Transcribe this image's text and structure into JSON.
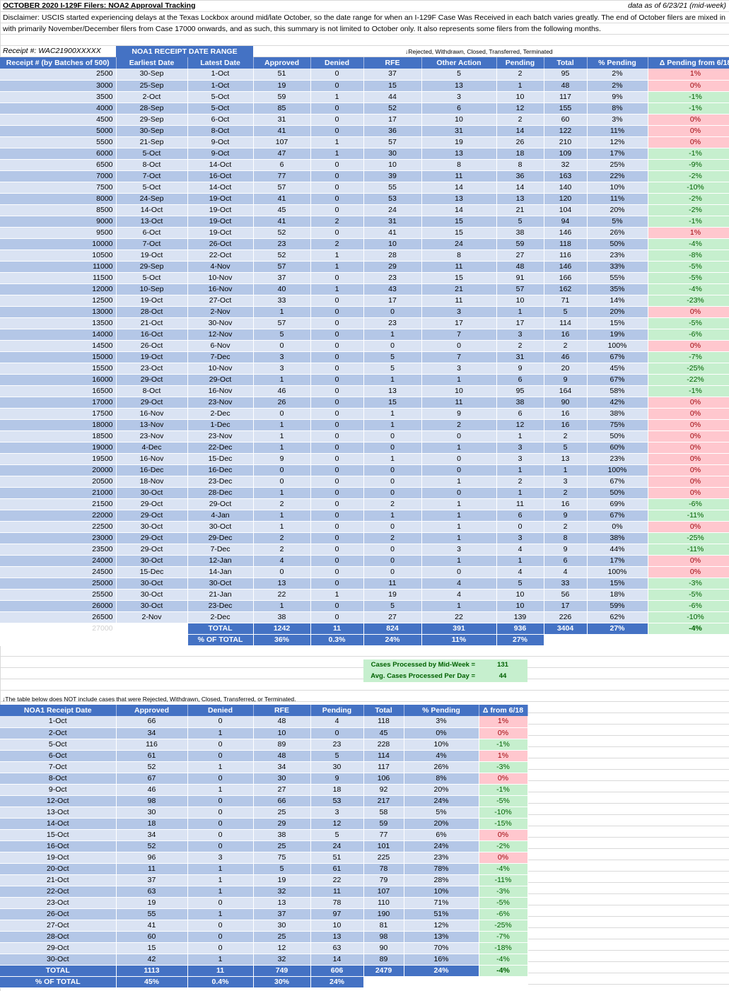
{
  "header": {
    "title": "OCTOBER 2020 I-129F Filers: NOA2 Approval Tracking",
    "as_of": "data as of 6/23/21 (mid-week)",
    "disclaimer": "Disclaimer: USCIS started experiencing delays at the Texas Lockbox around mid/late October, so the date range for when an I-129F Case Was Received in each batch varies greatly. The end of October filers are mixed in with primarily November/December filers from Case 17000 onwards, and as such, this summary is not limited to October only. It also represents some filers from the following months."
  },
  "batch_table": {
    "receipt_prefix": "Receipt #: WAC21900XXXXX",
    "range_group_label": "NOA1 RECEIPT DATE RANGE",
    "other_action_note": "↓Rejected, Withdrawn, Closed, Transferred, Terminated",
    "headers": [
      "Receipt # (by Batches of 500)",
      "Earliest Date",
      "Latest Date",
      "Approved",
      "Denied",
      "RFE",
      "Other Action",
      "Pending",
      "Total",
      "% Pending",
      "Δ Pending from 6/18"
    ],
    "rows": [
      [
        "2500",
        "30-Sep",
        "1-Oct",
        "51",
        "0",
        "37",
        "5",
        "2",
        "95",
        "2%",
        "1%"
      ],
      [
        "3000",
        "25-Sep",
        "1-Oct",
        "19",
        "0",
        "15",
        "13",
        "1",
        "48",
        "2%",
        "0%"
      ],
      [
        "3500",
        "2-Oct",
        "5-Oct",
        "59",
        "1",
        "44",
        "3",
        "10",
        "117",
        "9%",
        "-1%"
      ],
      [
        "4000",
        "28-Sep",
        "5-Oct",
        "85",
        "0",
        "52",
        "6",
        "12",
        "155",
        "8%",
        "-1%"
      ],
      [
        "4500",
        "29-Sep",
        "6-Oct",
        "31",
        "0",
        "17",
        "10",
        "2",
        "60",
        "3%",
        "0%"
      ],
      [
        "5000",
        "30-Sep",
        "8-Oct",
        "41",
        "0",
        "36",
        "31",
        "14",
        "122",
        "11%",
        "0%"
      ],
      [
        "5500",
        "21-Sep",
        "9-Oct",
        "107",
        "1",
        "57",
        "19",
        "26",
        "210",
        "12%",
        "0%"
      ],
      [
        "6000",
        "5-Oct",
        "9-Oct",
        "47",
        "1",
        "30",
        "13",
        "18",
        "109",
        "17%",
        "-1%"
      ],
      [
        "6500",
        "8-Oct",
        "14-Oct",
        "6",
        "0",
        "10",
        "8",
        "8",
        "32",
        "25%",
        "-9%"
      ],
      [
        "7000",
        "7-Oct",
        "16-Oct",
        "77",
        "0",
        "39",
        "11",
        "36",
        "163",
        "22%",
        "-2%"
      ],
      [
        "7500",
        "5-Oct",
        "14-Oct",
        "57",
        "0",
        "55",
        "14",
        "14",
        "140",
        "10%",
        "-10%"
      ],
      [
        "8000",
        "24-Sep",
        "19-Oct",
        "41",
        "0",
        "53",
        "13",
        "13",
        "120",
        "11%",
        "-2%"
      ],
      [
        "8500",
        "14-Oct",
        "19-Oct",
        "45",
        "0",
        "24",
        "14",
        "21",
        "104",
        "20%",
        "-2%"
      ],
      [
        "9000",
        "13-Oct",
        "19-Oct",
        "41",
        "2",
        "31",
        "15",
        "5",
        "94",
        "5%",
        "-1%"
      ],
      [
        "9500",
        "6-Oct",
        "19-Oct",
        "52",
        "0",
        "41",
        "15",
        "38",
        "146",
        "26%",
        "1%"
      ],
      [
        "10000",
        "7-Oct",
        "26-Oct",
        "23",
        "2",
        "10",
        "24",
        "59",
        "118",
        "50%",
        "-4%"
      ],
      [
        "10500",
        "19-Oct",
        "22-Oct",
        "52",
        "1",
        "28",
        "8",
        "27",
        "116",
        "23%",
        "-8%"
      ],
      [
        "11000",
        "29-Sep",
        "4-Nov",
        "57",
        "1",
        "29",
        "11",
        "48",
        "146",
        "33%",
        "-5%"
      ],
      [
        "11500",
        "5-Oct",
        "10-Nov",
        "37",
        "0",
        "23",
        "15",
        "91",
        "166",
        "55%",
        "-5%"
      ],
      [
        "12000",
        "10-Sep",
        "16-Nov",
        "40",
        "1",
        "43",
        "21",
        "57",
        "162",
        "35%",
        "-4%"
      ],
      [
        "12500",
        "19-Oct",
        "27-Oct",
        "33",
        "0",
        "17",
        "11",
        "10",
        "71",
        "14%",
        "-23%"
      ],
      [
        "13000",
        "28-Oct",
        "2-Nov",
        "1",
        "0",
        "0",
        "3",
        "1",
        "5",
        "20%",
        "0%"
      ],
      [
        "13500",
        "21-Oct",
        "30-Nov",
        "57",
        "0",
        "23",
        "17",
        "17",
        "114",
        "15%",
        "-5%"
      ],
      [
        "14000",
        "16-Oct",
        "12-Nov",
        "5",
        "0",
        "1",
        "7",
        "3",
        "16",
        "19%",
        "-6%"
      ],
      [
        "14500",
        "26-Oct",
        "6-Nov",
        "0",
        "0",
        "0",
        "0",
        "2",
        "2",
        "100%",
        "0%"
      ],
      [
        "15000",
        "19-Oct",
        "7-Dec",
        "3",
        "0",
        "5",
        "7",
        "31",
        "46",
        "67%",
        "-7%"
      ],
      [
        "15500",
        "23-Oct",
        "10-Nov",
        "3",
        "0",
        "5",
        "3",
        "9",
        "20",
        "45%",
        "-25%"
      ],
      [
        "16000",
        "29-Oct",
        "29-Oct",
        "1",
        "0",
        "1",
        "1",
        "6",
        "9",
        "67%",
        "-22%"
      ],
      [
        "16500",
        "8-Oct",
        "16-Nov",
        "46",
        "0",
        "13",
        "10",
        "95",
        "164",
        "58%",
        "-1%"
      ],
      [
        "17000",
        "29-Oct",
        "23-Nov",
        "26",
        "0",
        "15",
        "11",
        "38",
        "90",
        "42%",
        "0%"
      ],
      [
        "17500",
        "16-Nov",
        "2-Dec",
        "0",
        "0",
        "1",
        "9",
        "6",
        "16",
        "38%",
        "0%"
      ],
      [
        "18000",
        "13-Nov",
        "1-Dec",
        "1",
        "0",
        "1",
        "2",
        "12",
        "16",
        "75%",
        "0%"
      ],
      [
        "18500",
        "23-Nov",
        "23-Nov",
        "1",
        "0",
        "0",
        "0",
        "1",
        "2",
        "50%",
        "0%"
      ],
      [
        "19000",
        "4-Dec",
        "22-Dec",
        "1",
        "0",
        "0",
        "1",
        "3",
        "5",
        "60%",
        "0%"
      ],
      [
        "19500",
        "16-Nov",
        "15-Dec",
        "9",
        "0",
        "1",
        "0",
        "3",
        "13",
        "23%",
        "0%"
      ],
      [
        "20000",
        "16-Dec",
        "16-Dec",
        "0",
        "0",
        "0",
        "0",
        "1",
        "1",
        "100%",
        "0%"
      ],
      [
        "20500",
        "18-Nov",
        "23-Dec",
        "0",
        "0",
        "0",
        "1",
        "2",
        "3",
        "67%",
        "0%"
      ],
      [
        "21000",
        "30-Oct",
        "28-Dec",
        "1",
        "0",
        "0",
        "0",
        "1",
        "2",
        "50%",
        "0%"
      ],
      [
        "21500",
        "29-Oct",
        "29-Oct",
        "2",
        "0",
        "2",
        "1",
        "11",
        "16",
        "69%",
        "-6%"
      ],
      [
        "22000",
        "29-Oct",
        "4-Jan",
        "1",
        "0",
        "1",
        "1",
        "6",
        "9",
        "67%",
        "-11%"
      ],
      [
        "22500",
        "30-Oct",
        "30-Oct",
        "1",
        "0",
        "0",
        "1",
        "0",
        "2",
        "0%",
        "0%"
      ],
      [
        "23000",
        "29-Oct",
        "29-Dec",
        "2",
        "0",
        "2",
        "1",
        "3",
        "8",
        "38%",
        "-25%"
      ],
      [
        "23500",
        "29-Oct",
        "7-Dec",
        "2",
        "0",
        "0",
        "3",
        "4",
        "9",
        "44%",
        "-11%"
      ],
      [
        "24000",
        "30-Oct",
        "12-Jan",
        "4",
        "0",
        "0",
        "1",
        "1",
        "6",
        "17%",
        "0%"
      ],
      [
        "24500",
        "15-Dec",
        "14-Jan",
        "0",
        "0",
        "0",
        "0",
        "4",
        "4",
        "100%",
        "0%"
      ],
      [
        "25000",
        "30-Oct",
        "30-Oct",
        "13",
        "0",
        "11",
        "4",
        "5",
        "33",
        "15%",
        "-3%"
      ],
      [
        "25500",
        "30-Oct",
        "21-Jan",
        "22",
        "1",
        "19",
        "4",
        "10",
        "56",
        "18%",
        "-5%"
      ],
      [
        "26000",
        "30-Oct",
        "23-Dec",
        "1",
        "0",
        "5",
        "1",
        "10",
        "17",
        "59%",
        "-6%"
      ],
      [
        "26500",
        "2-Nov",
        "2-Dec",
        "38",
        "0",
        "27",
        "22",
        "139",
        "226",
        "62%",
        "-10%"
      ]
    ],
    "faded_last_receipt": "27000",
    "total_row": {
      "label": "TOTAL",
      "approved": "1242",
      "denied": "11",
      "rfe": "824",
      "other": "391",
      "pending": "936",
      "total": "3404",
      "pct_pending": "27%",
      "delta": "-4%"
    },
    "pct_row": {
      "label": "% OF TOTAL",
      "approved": "36%",
      "denied": "0.3%",
      "rfe": "24%",
      "other": "11%",
      "pending": "27%"
    }
  },
  "stats": {
    "processed_label": "Cases Processed by Mid-Week =",
    "processed_value": "131",
    "avg_label": "Avg. Cases Processed Per Day =",
    "avg_value": "44"
  },
  "date_table": {
    "note": "↓The table below does NOT include cases that were Rejected, Withdrawn, Closed, Transferred, or Terminated.",
    "headers": [
      "NOA1 Receipt Date",
      "Approved",
      "Denied",
      "RFE",
      "Pending",
      "Total",
      "% Pending",
      "Δ from 6/18"
    ],
    "rows": [
      [
        "1-Oct",
        "66",
        "0",
        "48",
        "4",
        "118",
        "3%",
        "1%"
      ],
      [
        "2-Oct",
        "34",
        "1",
        "10",
        "0",
        "45",
        "0%",
        "0%"
      ],
      [
        "5-Oct",
        "116",
        "0",
        "89",
        "23",
        "228",
        "10%",
        "-1%"
      ],
      [
        "6-Oct",
        "61",
        "0",
        "48",
        "5",
        "114",
        "4%",
        "1%"
      ],
      [
        "7-Oct",
        "52",
        "1",
        "34",
        "30",
        "117",
        "26%",
        "-3%"
      ],
      [
        "8-Oct",
        "67",
        "0",
        "30",
        "9",
        "106",
        "8%",
        "0%"
      ],
      [
        "9-Oct",
        "46",
        "1",
        "27",
        "18",
        "92",
        "20%",
        "-1%"
      ],
      [
        "12-Oct",
        "98",
        "0",
        "66",
        "53",
        "217",
        "24%",
        "-5%"
      ],
      [
        "13-Oct",
        "30",
        "0",
        "25",
        "3",
        "58",
        "5%",
        "-10%"
      ],
      [
        "14-Oct",
        "18",
        "0",
        "29",
        "12",
        "59",
        "20%",
        "-15%"
      ],
      [
        "15-Oct",
        "34",
        "0",
        "38",
        "5",
        "77",
        "6%",
        "0%"
      ],
      [
        "16-Oct",
        "52",
        "0",
        "25",
        "24",
        "101",
        "24%",
        "-2%"
      ],
      [
        "19-Oct",
        "96",
        "3",
        "75",
        "51",
        "225",
        "23%",
        "0%"
      ],
      [
        "20-Oct",
        "11",
        "1",
        "5",
        "61",
        "78",
        "78%",
        "-4%"
      ],
      [
        "21-Oct",
        "37",
        "1",
        "19",
        "22",
        "79",
        "28%",
        "-11%"
      ],
      [
        "22-Oct",
        "63",
        "1",
        "32",
        "11",
        "107",
        "10%",
        "-3%"
      ],
      [
        "23-Oct",
        "19",
        "0",
        "13",
        "78",
        "110",
        "71%",
        "-5%"
      ],
      [
        "26-Oct",
        "55",
        "1",
        "37",
        "97",
        "190",
        "51%",
        "-6%"
      ],
      [
        "27-Oct",
        "41",
        "0",
        "30",
        "10",
        "81",
        "12%",
        "-25%"
      ],
      [
        "28-Oct",
        "60",
        "0",
        "25",
        "13",
        "98",
        "13%",
        "-7%"
      ],
      [
        "29-Oct",
        "15",
        "0",
        "12",
        "63",
        "90",
        "70%",
        "-18%"
      ],
      [
        "30-Oct",
        "42",
        "1",
        "32",
        "14",
        "89",
        "16%",
        "-4%"
      ]
    ],
    "total_row": {
      "label": "TOTAL",
      "approved": "1113",
      "denied": "11",
      "rfe": "749",
      "pending": "606",
      "total": "2479",
      "pct_pending": "24%",
      "delta": "-4%"
    },
    "pct_row": {
      "label": "% OF TOTAL",
      "approved": "45%",
      "denied": "0.4%",
      "rfe": "30%",
      "pending": "24%"
    }
  },
  "colors": {
    "header_blue": "#4472c4",
    "band_light": "#dae3f3",
    "band_dark": "#b4c7e7",
    "good_fill": "#c6efce",
    "good_text": "#006100",
    "bad_fill": "#ffc7ce",
    "bad_text": "#9c0006"
  }
}
